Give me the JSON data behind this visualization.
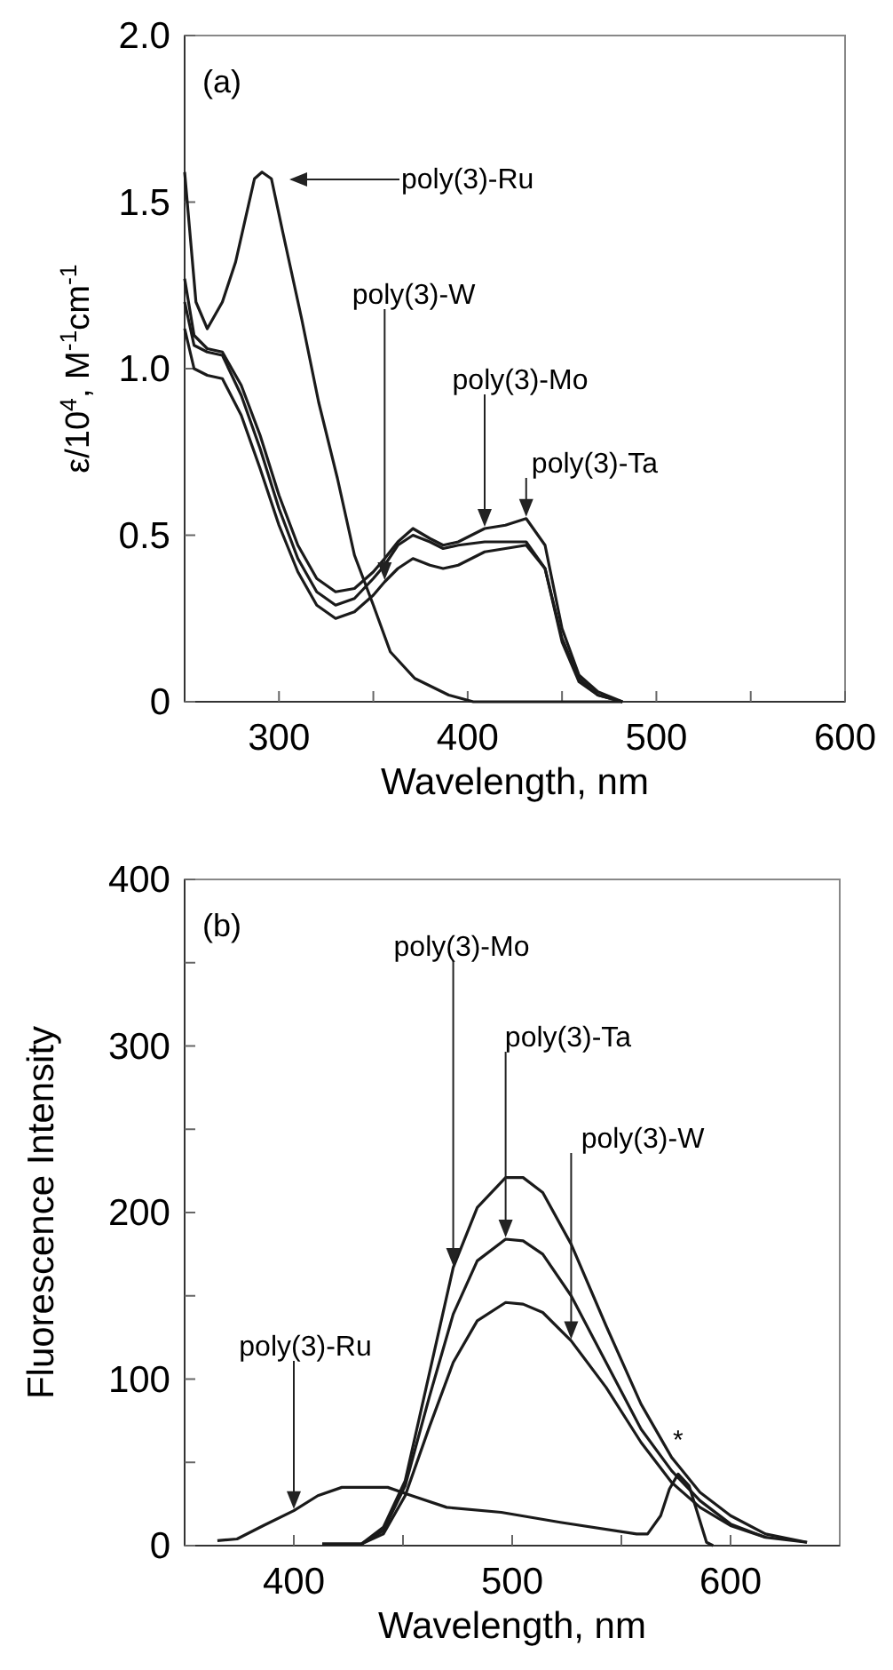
{
  "chart_data": [
    {
      "type": "line",
      "title": "(a)",
      "xlabel": "Wavelength, nm",
      "ylabel": "ε/10$^{4}$, M$^{-1}$cm$^{-1}$",
      "xlim": [
        250,
        600
      ],
      "ylim": [
        0,
        2
      ],
      "xticks": [
        300,
        {
          "value": 350,
          "label": null
        },
        400,
        {
          "value": 450,
          "label": null
        },
        500,
        {
          "value": 550,
          "label": null
        },
        600
      ],
      "yticks": [
        0,
        0.5,
        {
          "value": 1,
          "label": "1.0"
        },
        1.5,
        {
          "value": 2,
          "label": "2.0"
        }
      ],
      "grid": false,
      "x": [
        250,
        255,
        262,
        270,
        280,
        290,
        300,
        310,
        320,
        330,
        340,
        350,
        356,
        363,
        371,
        380,
        387,
        395,
        409,
        420,
        431,
        441,
        450,
        459,
        469,
        482
      ],
      "series": [
        {
          "color": "#1a1a1a",
          "x": [
            250,
            256,
            262,
            270,
            277,
            287,
            291,
            296,
            302,
            312,
            321,
            331,
            340,
            350,
            359,
            372,
            390,
            403,
            482
          ],
          "values": [
            1.59,
            1.2,
            1.12,
            1.2,
            1.32,
            1.57,
            1.59,
            1.57,
            1.41,
            1.15,
            0.9,
            0.67,
            0.44,
            0.29,
            0.15,
            0.07,
            0.02,
            0,
            0
          ]
        },
        {
          "color": "#1a1a1a",
          "values": [
            1.27,
            1.1,
            1.06,
            1.05,
            0.95,
            0.8,
            0.62,
            0.47,
            0.37,
            0.33,
            0.34,
            0.39,
            0.43,
            0.48,
            0.52,
            0.49,
            0.47,
            0.48,
            0.52,
            0.53,
            0.55,
            0.47,
            0.22,
            0.08,
            0.03,
            0
          ]
        },
        {
          "color": "#1a1a1a",
          "values": [
            1.2,
            1.07,
            1.05,
            1.04,
            0.92,
            0.76,
            0.58,
            0.43,
            0.33,
            0.29,
            0.31,
            0.37,
            0.41,
            0.47,
            0.5,
            0.48,
            0.46,
            0.47,
            0.48,
            0.48,
            0.48,
            0.4,
            0.19,
            0.07,
            0.02,
            0
          ]
        },
        {
          "color": "#1a1a1a",
          "values": [
            1.12,
            1,
            0.98,
            0.97,
            0.86,
            0.7,
            0.53,
            0.39,
            0.29,
            0.25,
            0.27,
            0.32,
            0.36,
            0.4,
            0.43,
            0.41,
            0.4,
            0.41,
            0.45,
            0.46,
            0.47,
            0.4,
            0.18,
            0.06,
            0.02,
            0
          ]
        }
      ],
      "annotations": [
        "poly(3)-Ru",
        {
          "text": "poly(3)-W",
          "x": 356,
          "y": 0.36
        },
        {
          "text": "poly(3)-Mo",
          "x": 409,
          "y": 0.52
        },
        {
          "text": "poly(3)-Ta",
          "x": 431,
          "y": 0.55
        }
      ]
    },
    {
      "type": "line",
      "title": "(b)",
      "xlabel": "Wavelength, nm",
      "ylabel": "Fluorescence Intensity",
      "xlim": [
        350,
        650
      ],
      "ylim": [
        0,
        400
      ],
      "xticks": [
        400,
        {
          "value": 450,
          "label": null
        },
        500,
        {
          "value": 550,
          "label": null
        },
        600
      ],
      "yticks": [
        0,
        {
          "value": 50,
          "label": null
        },
        100,
        {
          "value": 150,
          "label": null
        },
        200,
        {
          "value": 250,
          "label": null
        },
        300,
        {
          "value": 350,
          "label": null
        },
        400
      ],
      "grid": false,
      "x": [
        413,
        431,
        441,
        451,
        462,
        473,
        484,
        497,
        505,
        514,
        527,
        543,
        559,
        573,
        586,
        600,
        616,
        635
      ],
      "series": [
        {
          "color": "#1a1a1a",
          "x": [
            365,
            374,
            386,
            400,
            411,
            422,
            443,
            454,
            470,
            495,
            522,
            557,
            562,
            568,
            572,
            576,
            581,
            589,
            592
          ],
          "values": [
            3,
            4,
            12,
            21,
            30,
            35,
            35,
            30,
            23,
            20,
            14,
            7,
            7,
            18,
            34,
            43,
            36,
            2,
            0
          ]
        },
        {
          "color": "#1a1a1a",
          "values": [
            1,
            1,
            11,
            39,
            103,
            167,
            203,
            221,
            221,
            212,
            181,
            132,
            85,
            53,
            32,
            18,
            7,
            2
          ]
        },
        {
          "color": "#1a1a1a",
          "values": [
            null,
            1,
            9,
            36,
            89,
            139,
            171,
            184,
            183,
            175,
            150,
            110,
            70,
            45,
            27,
            13,
            5,
            2
          ]
        },
        {
          "color": "#1a1a1a",
          "values": [
            1,
            1,
            7,
            30,
            71,
            110,
            135,
            146,
            145,
            140,
            123,
            95,
            62,
            38,
            23,
            12,
            5,
            null
          ]
        }
      ],
      "annotations": [
        {
          "text": "poly(3)-Ru",
          "x": 400,
          "y": 21
        },
        {
          "text": "poly(3)-Mo",
          "x": 473,
          "y": 167
        },
        {
          "text": "poly(3)-Ta",
          "x": 497,
          "y": 184
        },
        {
          "text": "poly(3)-W",
          "x": 527,
          "y": 123
        },
        {
          "text": "*",
          "x": 576,
          "y": 43
        }
      ]
    }
  ]
}
